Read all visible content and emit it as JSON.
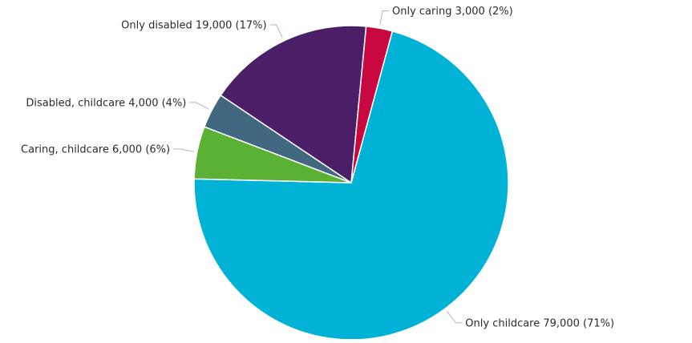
{
  "chart_data": {
    "type": "pie",
    "title": "",
    "slices": [
      {
        "name": "Only childcare",
        "value": 79000,
        "percent": 71,
        "label": "Only childcare 79,000 (71%)",
        "color": "#00b2d6"
      },
      {
        "name": "Caring, childcare",
        "value": 6000,
        "percent": 6,
        "label": "Caring, childcare 6,000 (6%)",
        "color": "#5bb133"
      },
      {
        "name": "Disabled, childcare",
        "value": 4000,
        "percent": 4,
        "label": "Disabled, childcare 4,000 (4%)",
        "color": "#426781"
      },
      {
        "name": "Only disabled",
        "value": 19000,
        "percent": 17,
        "label": "Only disabled 19,000 (17%)",
        "color": "#4b1f68"
      },
      {
        "name": "Only caring",
        "value": 3000,
        "percent": 2,
        "label": "Only caring 3,000 (2%)",
        "color": "#c8083f"
      }
    ],
    "legend": "none"
  }
}
